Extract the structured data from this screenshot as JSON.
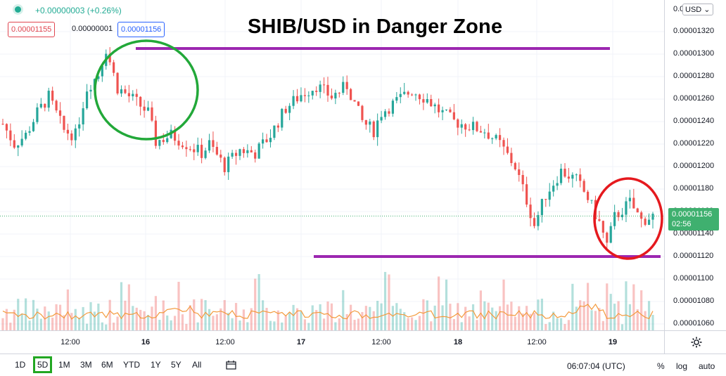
{
  "title": "SHIB/USD in Danger Zone",
  "header": {
    "change": "+0.00000003 (+0.26%)",
    "bid": "0.00001155",
    "spread": "0.00000001",
    "ask": "0.00001156"
  },
  "currency": "USD",
  "current_price": {
    "price": "0.00001156",
    "countdown": "02:56"
  },
  "bottom_bar": {
    "ranges": [
      "1D",
      "5D",
      "1M",
      "3M",
      "6M",
      "YTD",
      "1Y",
      "5Y",
      "All"
    ],
    "active_range": "5D",
    "time": "06:07:04 (UTC)",
    "percent_label": "%",
    "log_label": "log",
    "auto_label": "auto"
  },
  "colors": {
    "up": "#26a69a",
    "down": "#ef5350",
    "annotation_line": "#9c27b0",
    "circle_green": "#22a839",
    "circle_red": "#e5191e",
    "volume_ma": "#f39a3c"
  },
  "chart_data": {
    "type": "candlestick",
    "y_ticks": [
      "0.00001320",
      "0.00001300",
      "0.00001280",
      "0.00001260",
      "0.00001240",
      "0.00001220",
      "0.00001200",
      "0.00001180",
      "0.00001160",
      "0.00001140",
      "0.00001120",
      "0.00001100",
      "0.00001080",
      "0.00001060"
    ],
    "y_top_partial": "0.0",
    "ylim": [
      1.052e-05,
      1.341e-05
    ],
    "x_ticks": [
      "12:00",
      "16",
      "12:00",
      "17",
      "12:00",
      "18",
      "12:00",
      "19"
    ],
    "price_path": [
      [
        0,
        1.238e-05
      ],
      [
        3,
        1.22e-05
      ],
      [
        6,
        1.228e-05
      ],
      [
        9,
        1.248e-05
      ],
      [
        12,
        1.262e-05
      ],
      [
        16,
        1.232e-05
      ],
      [
        19,
        1.228e-05
      ],
      [
        22,
        1.27e-05
      ],
      [
        25,
        1.282e-05
      ],
      [
        27,
        1.305e-05
      ],
      [
        30,
        1.27e-05
      ],
      [
        34,
        1.26e-05
      ],
      [
        38,
        1.248e-05
      ],
      [
        40,
        1.222e-05
      ],
      [
        44,
        1.228e-05
      ],
      [
        48,
        1.22e-05
      ],
      [
        52,
        1.212e-05
      ],
      [
        54,
        1.22e-05
      ],
      [
        58,
        1.2e-05
      ],
      [
        62,
        1.215e-05
      ],
      [
        66,
        1.212e-05
      ],
      [
        70,
        1.228e-05
      ],
      [
        74,
        1.252e-05
      ],
      [
        78,
        1.264e-05
      ],
      [
        82,
        1.272e-05
      ],
      [
        86,
        1.262e-05
      ],
      [
        90,
        1.272e-05
      ],
      [
        94,
        1.24e-05
      ],
      [
        97,
        1.232e-05
      ],
      [
        99,
        1.248e-05
      ],
      [
        103,
        1.258e-05
      ],
      [
        107,
        1.268e-05
      ],
      [
        111,
        1.26e-05
      ],
      [
        114,
        1.25e-05
      ],
      [
        118,
        1.24e-05
      ],
      [
        122,
        1.236e-05
      ],
      [
        126,
        1.232e-05
      ],
      [
        130,
        1.22e-05
      ],
      [
        134,
        1.2e-05
      ],
      [
        137,
        1.17e-05
      ],
      [
        139,
        1.148e-05
      ],
      [
        142,
        1.175e-05
      ],
      [
        146,
        1.196e-05
      ],
      [
        150,
        1.188e-05
      ],
      [
        153,
        1.172e-05
      ],
      [
        156,
        1.15e-05
      ],
      [
        158,
        1.13e-05
      ],
      [
        160,
        1.155e-05
      ],
      [
        164,
        1.168e-05
      ],
      [
        167,
        1.152e-05
      ],
      [
        170,
        1.156e-05
      ]
    ],
    "volume_ma_level": 1.058e-05
  },
  "annotations": {
    "resistance": 1.305e-05,
    "support": 1.12e-05
  }
}
